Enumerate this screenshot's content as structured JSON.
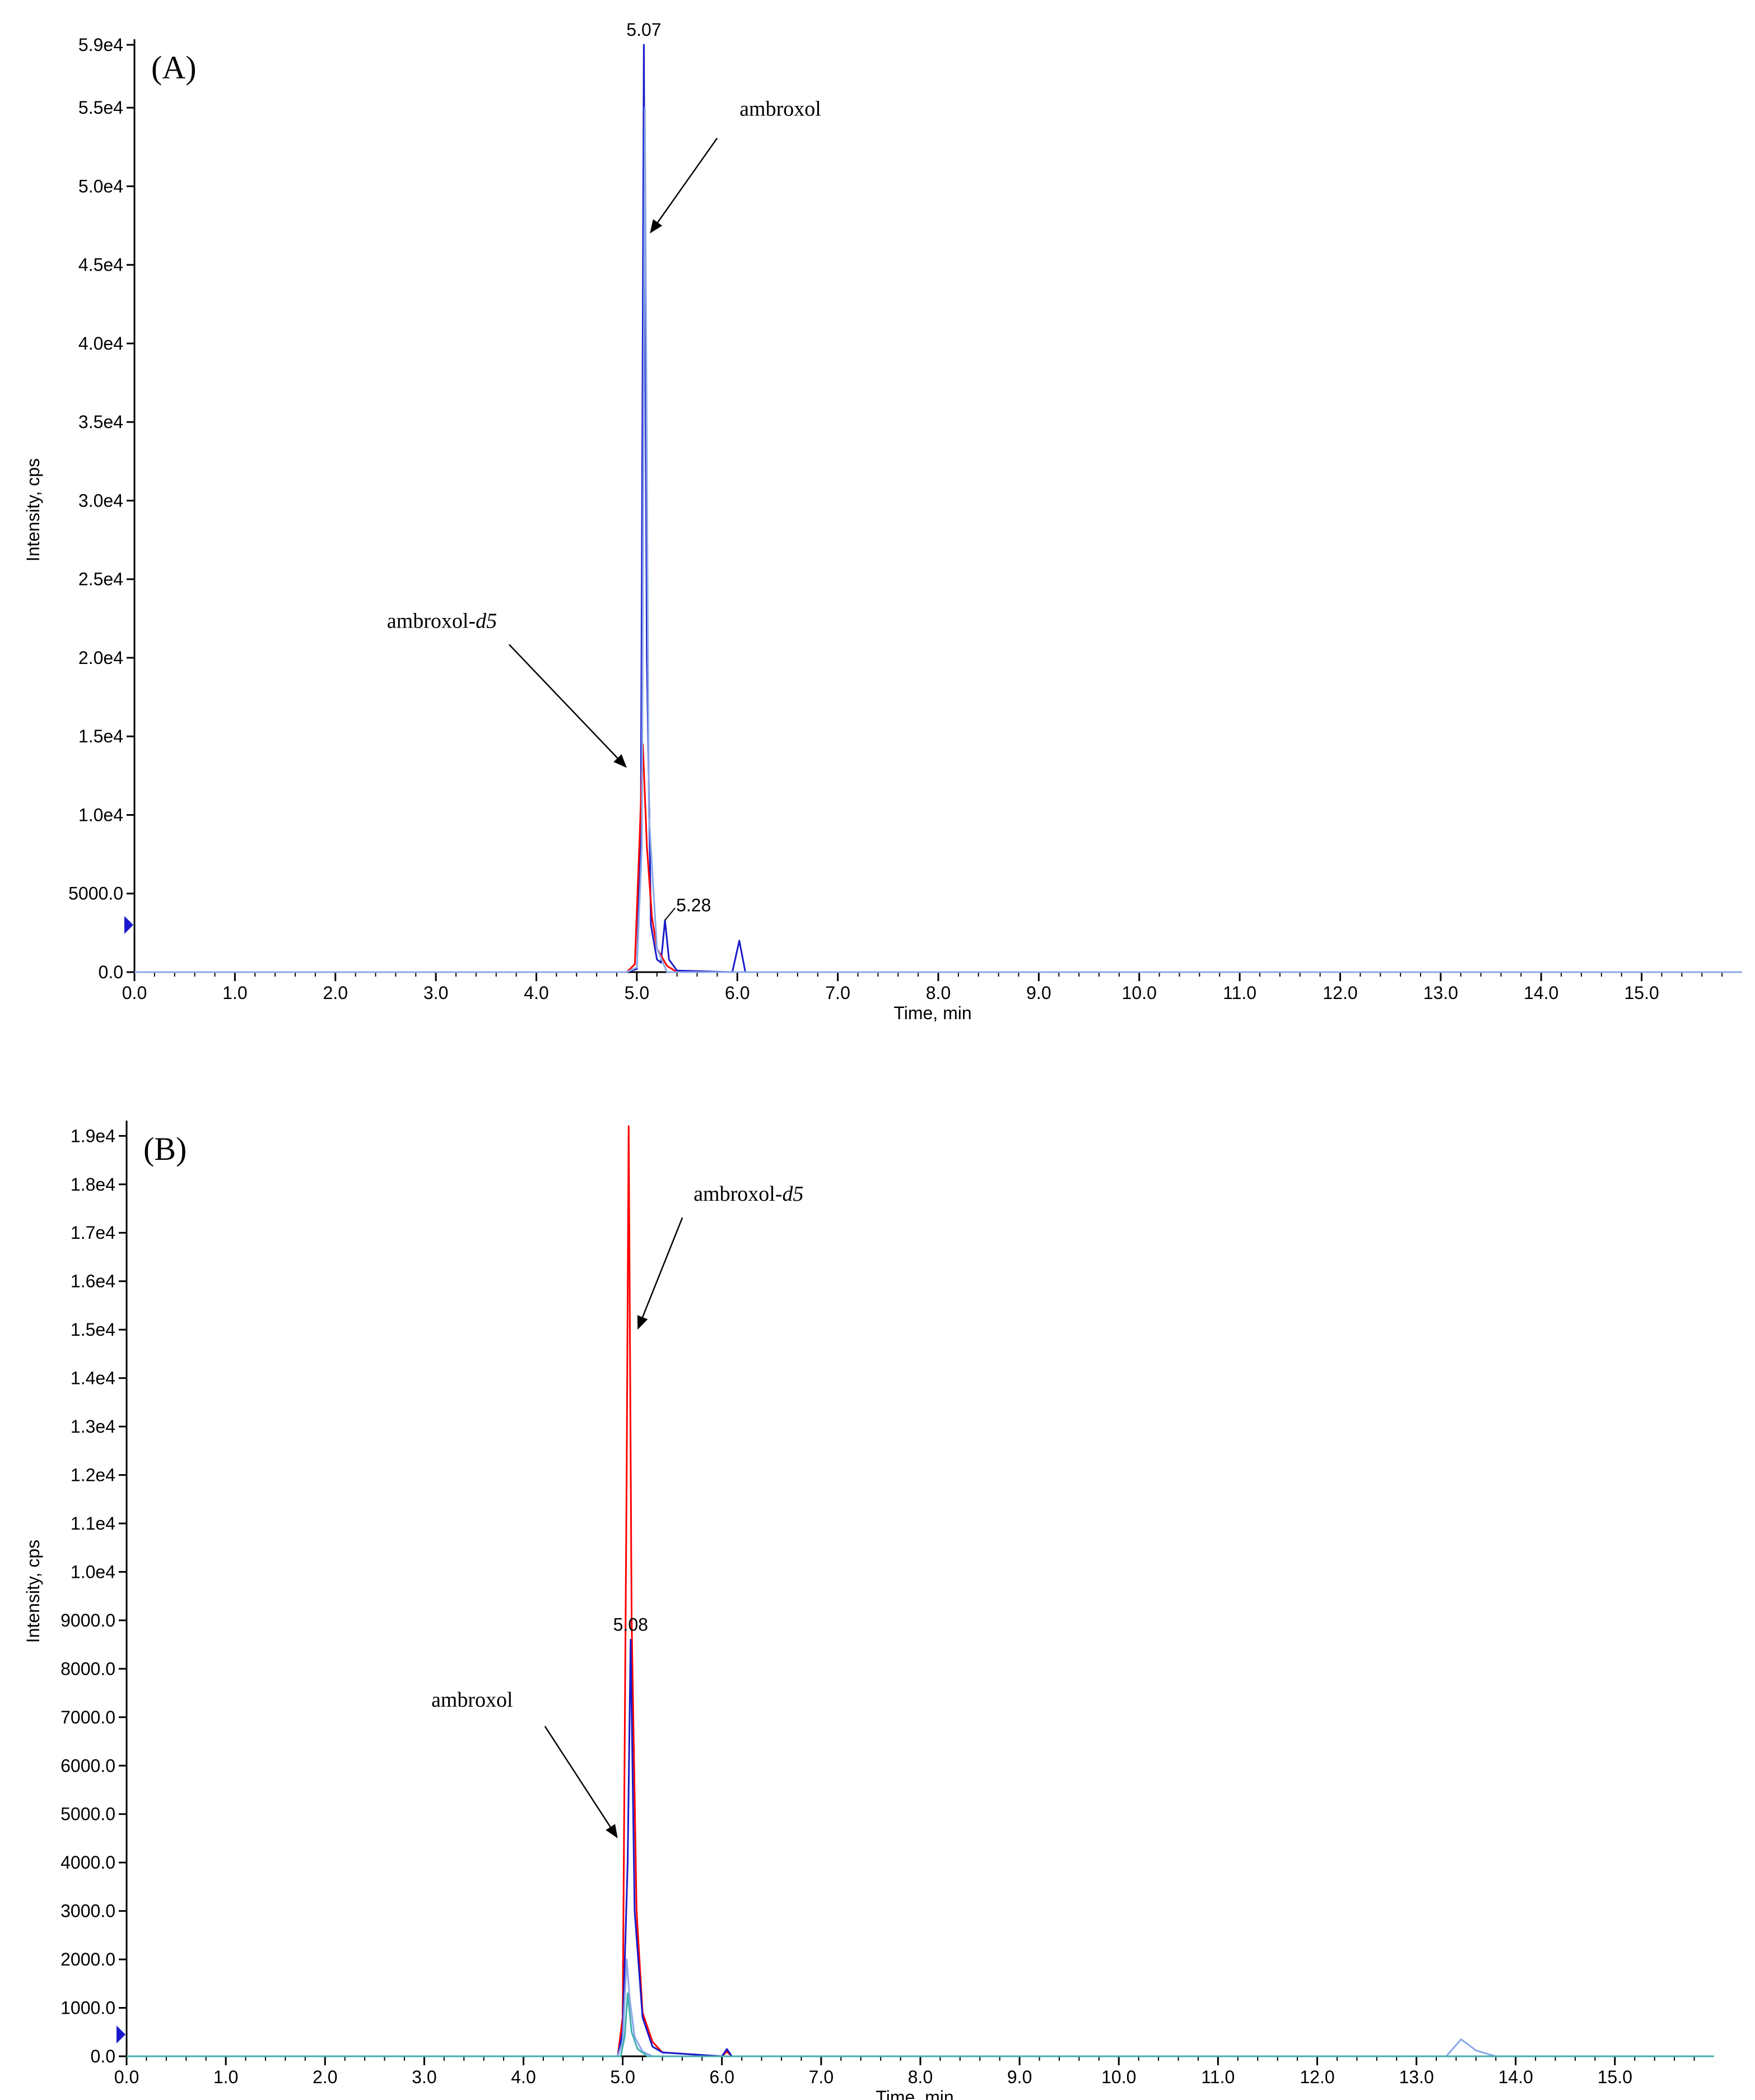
{
  "chart_data": [
    {
      "type": "line",
      "panel_label": "(A)",
      "xlabel": "Time, min",
      "ylabel": "Intensity, cps",
      "xlim": [
        0,
        16
      ],
      "ylim": [
        0,
        59000
      ],
      "x_ticks": [
        0,
        1,
        2,
        3,
        4,
        5,
        6,
        7,
        8,
        9,
        10,
        11,
        12,
        13,
        14,
        15
      ],
      "x_tick_labels": [
        "0.0",
        "1.0",
        "2.0",
        "3.0",
        "4.0",
        "5.0",
        "6.0",
        "7.0",
        "8.0",
        "9.0",
        "10.0",
        "11.0",
        "12.0",
        "13.0",
        "14.0",
        "15.0"
      ],
      "y_ticks": [
        0,
        5000,
        10000,
        15000,
        20000,
        25000,
        30000,
        35000,
        40000,
        45000,
        50000,
        55000,
        59000
      ],
      "y_tick_labels": [
        "0.0",
        "5000.0",
        "1.0e4",
        "1.5e4",
        "2.0e4",
        "2.5e4",
        "3.0e4",
        "3.5e4",
        "4.0e4",
        "4.5e4",
        "5.0e4",
        "5.5e4",
        "5.9e4"
      ],
      "series": [
        {
          "color": "#1a1acc",
          "x": [
            0,
            4.9,
            5.0,
            5.04,
            5.07,
            5.1,
            5.14,
            5.2,
            5.24,
            5.28,
            5.32,
            5.4,
            5.95,
            6.02,
            6.08,
            6.2,
            16
          ],
          "y": [
            0,
            0,
            200,
            9000,
            59000,
            20000,
            3000,
            800,
            600,
            3300,
            800,
            100,
            0,
            2000,
            0,
            0,
            0
          ]
        },
        {
          "color": "#ff0000",
          "x": [
            0,
            4.9,
            4.98,
            5.03,
            5.06,
            5.1,
            5.15,
            5.2,
            5.3,
            5.4,
            16
          ],
          "y": [
            0,
            0,
            500,
            9000,
            14500,
            8000,
            3500,
            1500,
            400,
            0,
            0
          ]
        },
        {
          "color": "#8aa8e8",
          "x": [
            0,
            4.9,
            5.0,
            5.05,
            5.08,
            5.12,
            5.2,
            5.3,
            16
          ],
          "y": [
            0,
            0,
            300,
            8000,
            55000,
            10000,
            1500,
            0,
            0
          ]
        }
      ],
      "peak_labels": [
        {
          "text": "5.07",
          "x": 5.07,
          "y": 59000
        },
        {
          "text": "5.28",
          "x": 5.28,
          "y": 3300
        }
      ],
      "annotations": [
        {
          "text": "ambroxol",
          "arrow_to": {
            "x": 5.13,
            "y": 47000
          }
        },
        {
          "text": "ambroxol-",
          "subscript": "d5",
          "arrow_to": {
            "x": 4.9,
            "y": 13000
          }
        }
      ],
      "baseline_marker": 3000
    },
    {
      "type": "line",
      "panel_label": "(B)",
      "xlabel": "Time, min",
      "ylabel": "Intensity, cps",
      "xlim": [
        0,
        16
      ],
      "ylim": [
        0,
        19200
      ],
      "x_ticks": [
        0,
        1,
        2,
        3,
        4,
        5,
        6,
        7,
        8,
        9,
        10,
        11,
        12,
        13,
        14,
        15
      ],
      "x_tick_labels": [
        "0.0",
        "1.0",
        "2.0",
        "3.0",
        "4.0",
        "5.0",
        "6.0",
        "7.0",
        "8.0",
        "9.0",
        "10.0",
        "11.0",
        "12.0",
        "13.0",
        "14.0",
        "15.0"
      ],
      "y_ticks": [
        0,
        1000,
        2000,
        3000,
        4000,
        5000,
        6000,
        7000,
        8000,
        9000,
        10000,
        11000,
        12000,
        13000,
        14000,
        15000,
        16000,
        17000,
        18000,
        19000
      ],
      "y_tick_labels": [
        "0.0",
        "1000.0",
        "2000.0",
        "3000.0",
        "4000.0",
        "5000.0",
        "6000.0",
        "7000.0",
        "8000.0",
        "9000.0",
        "1.0e4",
        "1.1e4",
        "1.2e4",
        "1.3e4",
        "1.4e4",
        "1.5e4",
        "1.6e4",
        "1.7e4",
        "1.8e4",
        "1.9e4"
      ],
      "series": [
        {
          "color": "#ff0000",
          "x": [
            0,
            4.95,
            5.0,
            5.04,
            5.06,
            5.09,
            5.14,
            5.2,
            5.3,
            5.4,
            6.0,
            6.05,
            6.1,
            16
          ],
          "y": [
            0,
            0,
            800,
            12000,
            19200,
            9000,
            3000,
            900,
            300,
            80,
            0,
            100,
            0,
            0
          ]
        },
        {
          "color": "#1a1acc",
          "x": [
            0,
            4.95,
            5.0,
            5.05,
            5.08,
            5.12,
            5.2,
            5.3,
            5.4,
            6.0,
            6.05,
            6.1,
            16
          ],
          "y": [
            0,
            0,
            500,
            4000,
            8600,
            3000,
            800,
            200,
            80,
            0,
            150,
            0,
            0
          ]
        },
        {
          "color": "#8aa8e8",
          "x": [
            0,
            4.95,
            5.0,
            5.04,
            5.07,
            5.12,
            5.2,
            5.3,
            13.3,
            13.45,
            13.6,
            13.8,
            16
          ],
          "y": [
            0,
            0,
            300,
            2000,
            1200,
            400,
            100,
            0,
            0,
            350,
            120,
            0,
            0
          ]
        },
        {
          "color": "#40b0b0",
          "x": [
            0,
            4.98,
            5.02,
            5.05,
            5.09,
            5.15,
            5.25,
            16
          ],
          "y": [
            0,
            0,
            400,
            1300,
            500,
            150,
            0,
            0
          ]
        }
      ],
      "peak_labels": [
        {
          "text": "5.08",
          "x": 5.08,
          "y": 8600
        }
      ],
      "annotations": [
        {
          "text": "ambroxol-",
          "subscript": "d5",
          "arrow_to": {
            "x": 5.15,
            "y": 15000
          }
        },
        {
          "text": "ambroxol",
          "arrow_to": {
            "x": 4.95,
            "y": 4500
          }
        }
      ],
      "baseline_marker": 450
    }
  ]
}
